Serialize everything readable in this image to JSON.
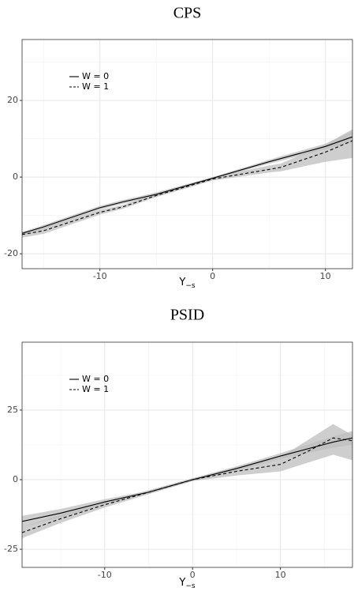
{
  "chart_data": [
    {
      "type": "line",
      "title": "CPS",
      "xlabel": {
        "main": "Y",
        "sub": "−s"
      },
      "x": [
        -16.9,
        -15,
        -10,
        -8,
        -5,
        0,
        5,
        6,
        10,
        12.4
      ],
      "series": [
        {
          "name": "W = 0",
          "color": "#000000",
          "dash": false,
          "values": [
            -14.7,
            -13,
            -8,
            -6.5,
            -4.5,
            -0.3,
            4,
            4.8,
            8,
            10.5
          ],
          "band_lower": [
            -15,
            -13.5,
            -8.5,
            -7,
            -5,
            -0.6,
            3.5,
            4.2,
            7.3,
            9
          ],
          "band_upper": [
            -14.4,
            -12.5,
            -7.5,
            -6,
            -4,
            0,
            4.5,
            5.4,
            8.7,
            12
          ]
        },
        {
          "name": "W = 1",
          "color": "#000000",
          "dash": true,
          "values": [
            -15,
            -14,
            -9.2,
            -7.8,
            -4.8,
            -0.5,
            2,
            2.5,
            6.5,
            9.5
          ],
          "band_lower": [
            -15.8,
            -14.8,
            -9.8,
            -8.3,
            -5.2,
            -0.9,
            1.2,
            1.5,
            4,
            5
          ],
          "band_upper": [
            -14.2,
            -13.2,
            -8.6,
            -7.3,
            -4.4,
            0,
            3,
            3.5,
            8.5,
            12.5
          ]
        }
      ],
      "xlim": [
        -16.9,
        12.4
      ],
      "ylim": [
        -23.9,
        35.9
      ],
      "xticks": [
        -10,
        0,
        10
      ],
      "yticks": [
        -20,
        0,
        20
      ],
      "grid": true,
      "legend": "top-left"
    },
    {
      "type": "line",
      "title": "PSID",
      "xlabel": {
        "main": "Y",
        "sub": "−s"
      },
      "x": [
        -19.4,
        -15,
        -10,
        -5,
        0,
        5,
        10,
        13,
        16,
        18.2
      ],
      "series": [
        {
          "name": "W = 0",
          "color": "#000000",
          "dash": false,
          "values": [
            -15,
            -12,
            -8,
            -4.5,
            0,
            4,
            8.5,
            11,
            13.5,
            15
          ],
          "band_lower": [
            -17,
            -13.5,
            -9,
            -5,
            -0.5,
            3.2,
            7.5,
            9.5,
            11.5,
            12.5
          ],
          "band_upper": [
            -13,
            -10.5,
            -7,
            -4,
            0.5,
            4.8,
            9.5,
            12.5,
            15.5,
            17.5
          ]
        },
        {
          "name": "W = 1",
          "color": "#000000",
          "dash": true,
          "values": [
            -19,
            -14,
            -9,
            -4.5,
            0,
            3,
            5.5,
            10,
            15,
            14
          ],
          "band_lower": [
            -21,
            -15.5,
            -10,
            -5.2,
            -0.5,
            1.5,
            3,
            6,
            9,
            7
          ],
          "band_upper": [
            -17,
            -12.5,
            -8,
            -3.8,
            0.5,
            4.5,
            8,
            14,
            20,
            16
          ]
        }
      ],
      "xlim": [
        -19.4,
        18.2
      ],
      "ylim": [
        -31.5,
        49.4
      ],
      "xticks": [
        -10,
        0,
        10
      ],
      "yticks": [
        -25,
        0,
        25
      ],
      "grid": true,
      "legend": "top-left"
    }
  ]
}
